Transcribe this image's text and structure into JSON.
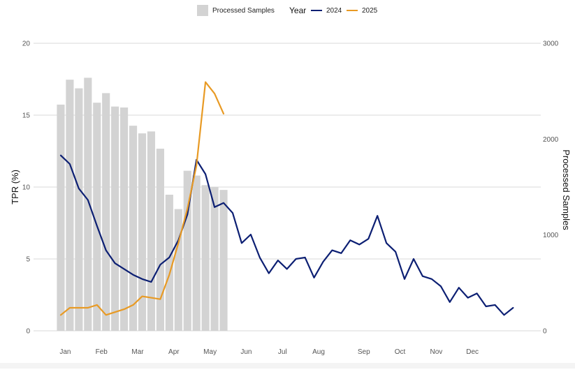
{
  "chart_data": {
    "type": "bar+line",
    "legend": {
      "placement": "top-center",
      "bar_label": "Processed Samples",
      "line_title": "Year",
      "series_labels": [
        "2024",
        "2025"
      ]
    },
    "left_axis": {
      "label": "TPR (%)",
      "range": [
        0,
        20
      ],
      "ticks": [
        "0",
        "5",
        "10",
        "15",
        "20"
      ],
      "tick_values": [
        0,
        5,
        10,
        15,
        20
      ]
    },
    "right_axis": {
      "label": "Processed Samples",
      "range": [
        0,
        3000
      ],
      "ticks": [
        "0",
        "1000",
        "2000",
        "3000"
      ],
      "tick_values": [
        0,
        1000,
        2000,
        3000
      ]
    },
    "x_axis": {
      "unit": "week",
      "range": [
        0,
        53
      ],
      "month_labels": [
        "Jan",
        "Feb",
        "Mar",
        "Apr",
        "May",
        "Jun",
        "Jul",
        "Aug",
        "Sep",
        "Oct",
        "Nov",
        "Dec"
      ],
      "month_positions": [
        1.5,
        5.5,
        9.5,
        13.5,
        17.5,
        21.5,
        25.5,
        29.5,
        34.5,
        38.5,
        42.5,
        46.5
      ]
    },
    "grid": true,
    "bars": {
      "name": "Processed Samples",
      "color": "#d3d3d3",
      "x": [
        1,
        2,
        3,
        4,
        5,
        6,
        7,
        8,
        9,
        10,
        11,
        12,
        13,
        14,
        15,
        16,
        17,
        18,
        19
      ],
      "values": [
        2360,
        2620,
        2530,
        2640,
        2380,
        2480,
        2340,
        2330,
        2140,
        2060,
        2080,
        1900,
        1420,
        1270,
        1670,
        1620,
        1520,
        1500,
        1470
      ]
    },
    "series": [
      {
        "name": "2024",
        "color": "#0c1f73",
        "x": [
          1,
          2,
          3,
          4,
          5,
          6,
          7,
          8,
          9,
          10,
          11,
          12,
          13,
          14,
          15,
          16,
          17,
          18,
          19,
          20,
          21,
          22,
          23,
          24,
          25,
          26,
          27,
          28,
          29,
          30,
          31,
          32,
          33,
          34,
          35,
          36,
          37,
          38,
          39,
          40,
          41,
          42,
          43,
          44,
          45,
          46,
          47,
          48,
          49,
          50,
          51
        ],
        "values": [
          12.2,
          11.6,
          9.9,
          9.1,
          7.3,
          5.6,
          4.7,
          4.3,
          3.9,
          3.6,
          3.4,
          4.6,
          5.1,
          6.3,
          8.1,
          11.9,
          10.9,
          8.6,
          8.9,
          8.2,
          6.1,
          6.7,
          5.1,
          4.0,
          4.9,
          4.3,
          5.0,
          5.1,
          3.7,
          4.8,
          5.6,
          5.4,
          6.3,
          6.0,
          6.4,
          8.0,
          6.1,
          5.5,
          3.6,
          5.0,
          3.8,
          3.6,
          3.1,
          2.0,
          3.0,
          2.3,
          2.6,
          1.7,
          1.8,
          1.1,
          1.6
        ]
      },
      {
        "name": "2025",
        "color": "#e89a24",
        "x": [
          1,
          2,
          3,
          4,
          5,
          6,
          7,
          8,
          9,
          10,
          11,
          12,
          13,
          14,
          15,
          16,
          17,
          18,
          19
        ],
        "values": [
          1.1,
          1.6,
          1.6,
          1.6,
          1.8,
          1.1,
          1.3,
          1.5,
          1.8,
          2.4,
          2.3,
          2.2,
          3.9,
          6.1,
          8.5,
          11.5,
          17.3,
          16.5,
          15.1
        ]
      }
    ]
  }
}
